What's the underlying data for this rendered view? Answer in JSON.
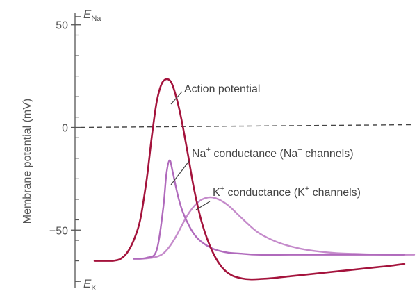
{
  "chart_data": {
    "type": "line",
    "ylabel": "Membrane potential (mV)",
    "ylim": [
      -78,
      56
    ],
    "yticks": [
      {
        "value": 50,
        "label": "50"
      },
      {
        "value": 0,
        "label": "0"
      },
      {
        "value": -50,
        "label": "−50"
      }
    ],
    "reference_levels": {
      "E_Na": {
        "main": "E",
        "sub": "Na",
        "value": 54
      },
      "E_K": {
        "main": "E",
        "sub": "K",
        "value": -75
      }
    },
    "zero_line": {
      "value": 0,
      "style": "dashed"
    },
    "annotations": {
      "action_potential": "Action potential",
      "na": {
        "ion": "Na",
        "sup": "+",
        "mid": " conductance (Na",
        "sup2": "+",
        "end": " channels)"
      },
      "k": {
        "ion": "K",
        "sup": "+",
        "mid": " conductance (K",
        "sup2": "+",
        "end": " channels)"
      }
    },
    "series": [
      {
        "color": "#a4133c",
        "x": [
          0,
          0.4,
          0.6,
          0.8,
          1.0,
          1.2,
          1.4,
          1.6,
          1.75,
          1.9,
          2.05,
          2.2,
          2.35,
          2.5,
          2.65,
          2.85,
          3.05,
          3.3,
          3.6,
          3.9,
          4.2,
          4.5,
          4.8,
          5.4,
          6.0,
          6.6,
          7.2,
          7.8,
          8.4,
          9.0,
          9.5
        ],
        "y": [
          -65,
          -65,
          -64.9,
          -64,
          -61,
          -55,
          -45,
          -25,
          -5,
          12,
          21,
          23.5,
          22,
          15,
          5,
          -12,
          -30,
          -47,
          -60,
          -68,
          -72,
          -73.5,
          -74,
          -73.5,
          -72.5,
          -71.5,
          -70.5,
          -69.5,
          -68.5,
          -67.5,
          -66.5
        ]
      },
      {
        "color": "#b06abc",
        "x": [
          1.2,
          1.6,
          1.9,
          2.1,
          2.2,
          2.3,
          2.4,
          2.55,
          2.7,
          2.9,
          3.1,
          3.3,
          3.55,
          3.8,
          4.1,
          4.5,
          5.0,
          6.0,
          7.0,
          8.0,
          9.5
        ],
        "y": [
          -64,
          -63.5,
          -60,
          -40,
          -23,
          -16,
          -22,
          -33,
          -41,
          -48,
          -53,
          -56,
          -58.5,
          -60,
          -61,
          -61.5,
          -62,
          -62,
          -62,
          -62,
          -62
        ]
      },
      {
        "color": "#c58bcb",
        "x": [
          1.2,
          1.6,
          1.9,
          2.1,
          2.3,
          2.5,
          2.7,
          2.9,
          3.1,
          3.3,
          3.55,
          3.8,
          4.1,
          4.4,
          4.7,
          5.0,
          5.4,
          5.8,
          6.3,
          6.8,
          7.4,
          8.2,
          9.0,
          9.8
        ],
        "y": [
          -64,
          -63.8,
          -63,
          -61.5,
          -58,
          -53,
          -47,
          -41.5,
          -37.5,
          -35,
          -34,
          -35,
          -38,
          -42.5,
          -47,
          -51,
          -54.5,
          -57,
          -59,
          -60.3,
          -61.2,
          -61.7,
          -62,
          -62
        ]
      }
    ],
    "xlim": [
      -0.3,
      9.8
    ]
  }
}
